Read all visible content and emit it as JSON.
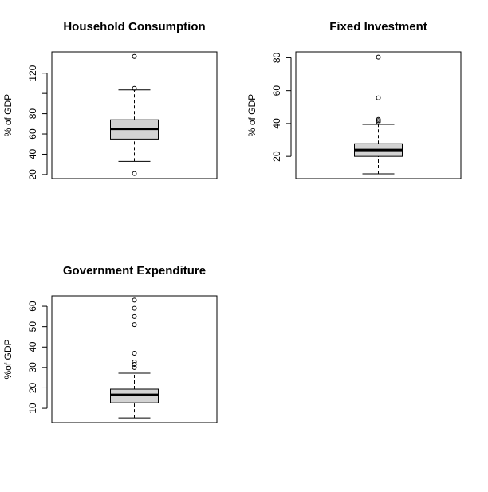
{
  "chart_data": [
    {
      "type": "box",
      "title": "Household Consumption",
      "y_label": "% of GDP",
      "color": "#d3d3d3",
      "ylim": [
        16,
        141
      ],
      "yticks": [
        20,
        40,
        60,
        80,
        {
          "value": 100,
          "label": null
        },
        120
      ],
      "stats": {
        "whisker_low": 33,
        "q1": 55,
        "median": 65,
        "q3": 74,
        "whisker_high": 103.5
      },
      "outliers": [
        21,
        105,
        136.5
      ]
    },
    {
      "type": "box",
      "title": "Fixed Investment",
      "y_label": "% of GDP",
      "color": "#d3d3d3",
      "ylim": [
        6.5,
        83.6
      ],
      "yticks": [
        20,
        40,
        60,
        80
      ],
      "stats": {
        "whisker_low": 9.4,
        "q1": 20,
        "median": 23.9,
        "q3": 27.7,
        "whisker_high": 39.5
      },
      "outliers": [
        41,
        41.8,
        42.5,
        55.6,
        80.4
      ]
    },
    {
      "type": "box",
      "title": "Government Expenditure",
      "y_label": "%of GDP",
      "color": "#d3d3d3",
      "ylim": [
        3,
        65.1
      ],
      "yticks": [
        10,
        20,
        30,
        40,
        50,
        60
      ],
      "stats": {
        "whisker_low": 5.3,
        "q1": 12.7,
        "median": 16.6,
        "q3": 19.4,
        "whisker_high": 27.2
      },
      "outliers": [
        30,
        31.5,
        32.7,
        37,
        51,
        55,
        59,
        63
      ]
    }
  ]
}
